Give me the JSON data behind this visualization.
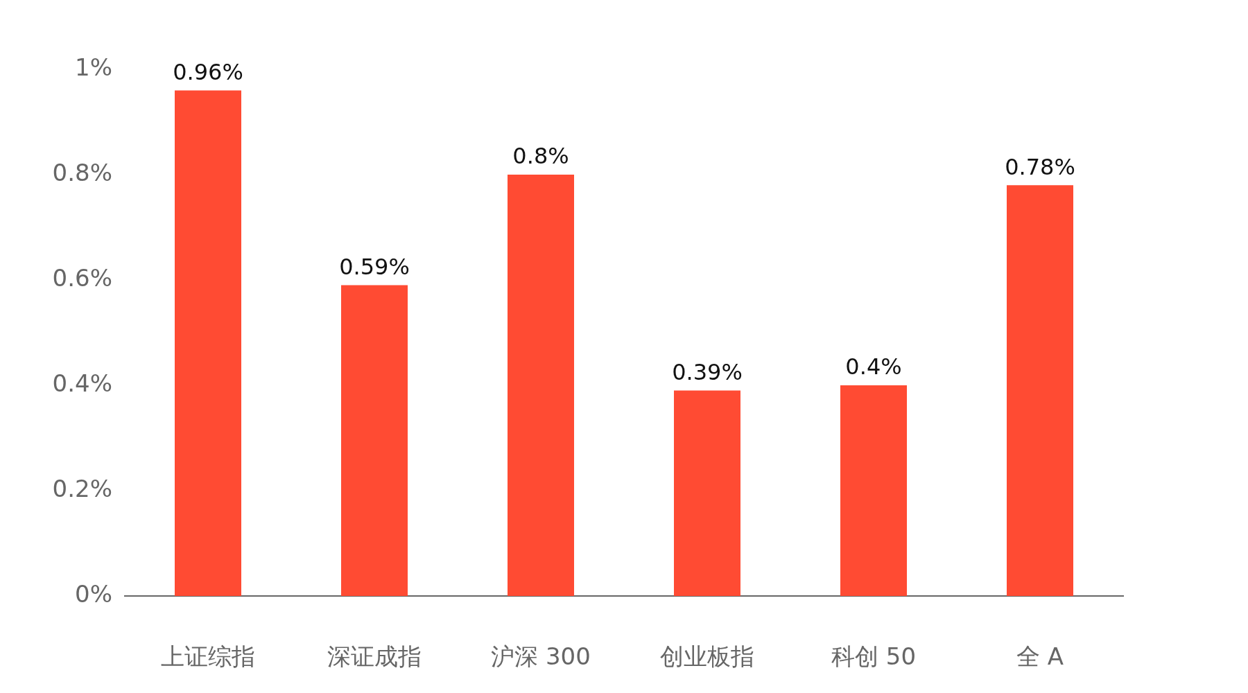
{
  "chart_data": {
    "type": "bar",
    "categories": [
      "上证综指",
      "深证成指",
      "沪深 300",
      "创业板指",
      "科创 50",
      "全 A"
    ],
    "values": [
      0.96,
      0.59,
      0.8,
      0.39,
      0.4,
      0.78
    ],
    "value_labels": [
      "0.96%",
      "0.59%",
      "0.8%",
      "0.39%",
      "0.4%",
      "0.78%"
    ],
    "color": "#ff4b33",
    "ylim": [
      0,
      1
    ],
    "yticks": [
      {
        "value": 0,
        "label": "0%"
      },
      {
        "value": 0.2,
        "label": "0.2%"
      },
      {
        "value": 0.4,
        "label": "0.4%"
      },
      {
        "value": 0.6,
        "label": "0.6%"
      },
      {
        "value": 0.8,
        "label": "0.8%"
      },
      {
        "value": 1,
        "label": "1%"
      }
    ],
    "grid": false,
    "legend": false
  }
}
